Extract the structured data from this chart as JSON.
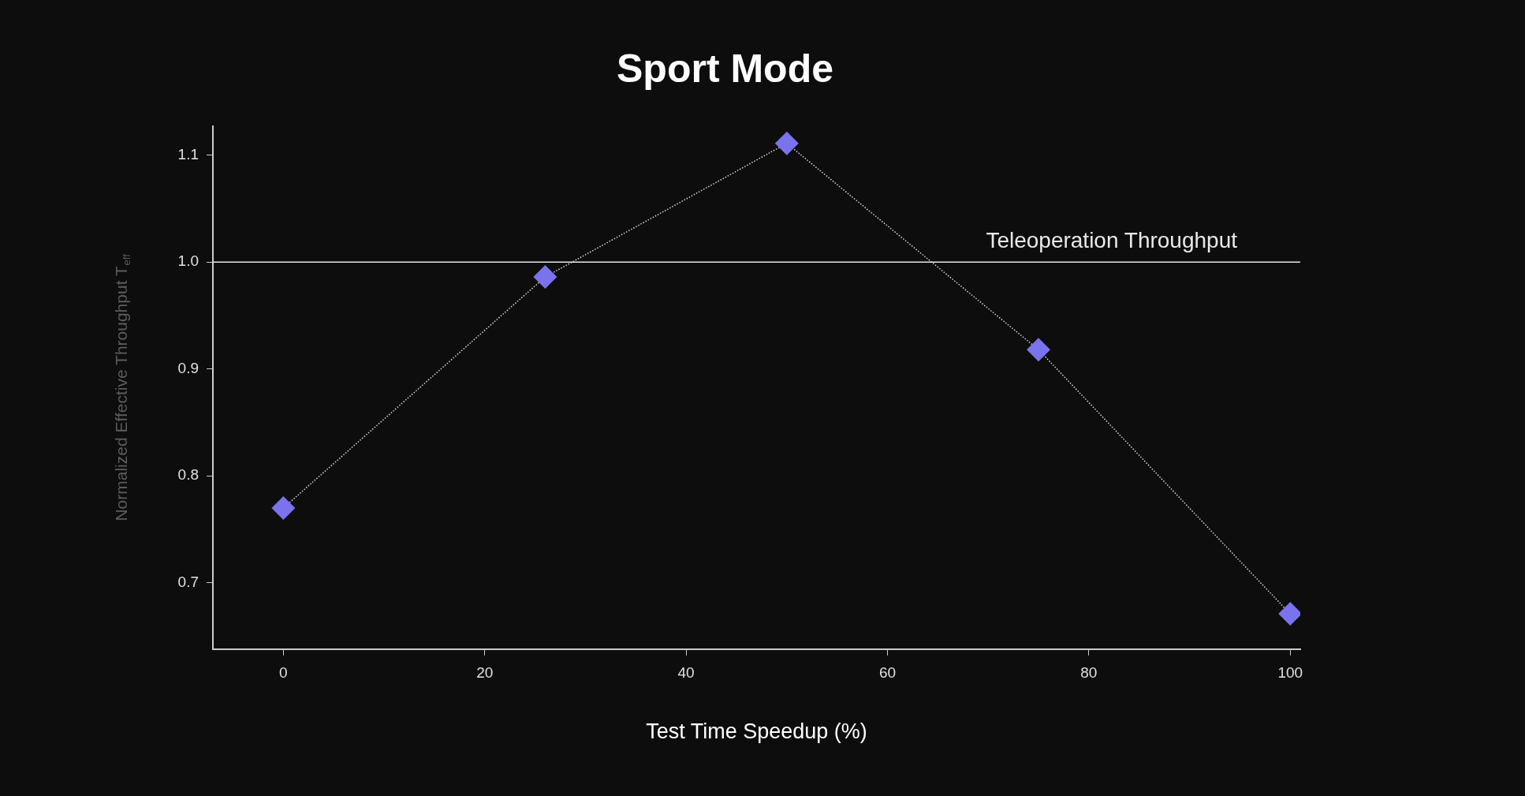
{
  "chart_data": {
    "type": "line",
    "title": "Sport Mode",
    "xlabel": "Test Time Speedup (%)",
    "ylabel": "Normalized Effective Throughput T$_{eff}$",
    "x": [
      0,
      26,
      50,
      75,
      100
    ],
    "series": [
      {
        "color": "#7b72ee",
        "values": [
          0.77,
          0.986,
          1.111,
          0.918,
          0.671
        ]
      }
    ],
    "xlim": [
      -7,
      101
    ],
    "xticks": [
      0,
      20,
      40,
      60,
      80,
      100
    ],
    "ylim": [
      0.638,
      1.127
    ],
    "yticks": [
      0.7,
      0.8,
      0.9,
      {
        "value": 1.0,
        "label": "1.0"
      },
      1.1
    ],
    "ref_lines": [
      {
        "axis": "y",
        "value": 1.0,
        "label": "Teleoperation Throughput",
        "color": "#e8e8e8"
      }
    ],
    "grid": false,
    "legend": false,
    "marker": "diamond",
    "line_style": "dotted"
  }
}
